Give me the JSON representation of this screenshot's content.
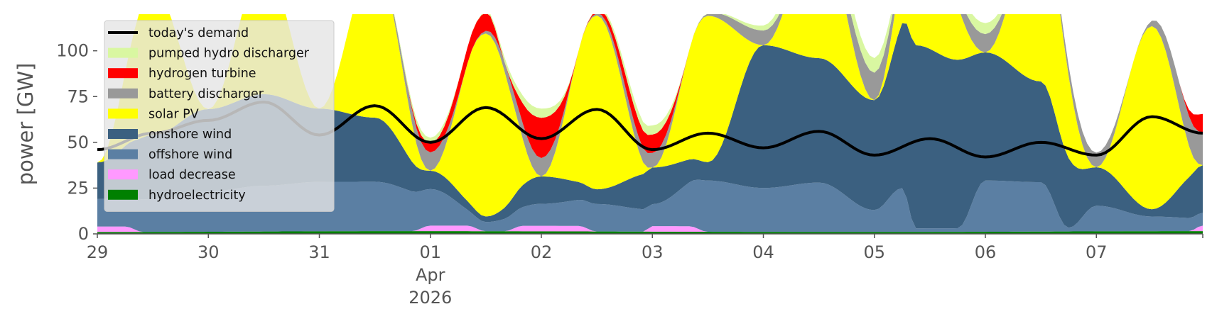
{
  "chart_data": {
    "type": "area",
    "stacked": true,
    "title": "",
    "ylabel": "power [GW]",
    "xlabel": "",
    "ylim": [
      0,
      120
    ],
    "xlim": [
      "2026-03-29 00:00",
      "2026-04-07 23:00"
    ],
    "y_ticks": [
      0,
      25,
      50,
      75,
      100
    ],
    "x_ticks": [
      {
        "x": "2026-03-29 00:00",
        "label": "29"
      },
      {
        "x": "2026-03-30 00:00",
        "label": "30"
      },
      {
        "x": "2026-03-31 00:00",
        "label": "31"
      },
      {
        "x": "2026-04-01 00:00",
        "label": "01",
        "sublabels": [
          "Apr",
          "2026"
        ]
      },
      {
        "x": "2026-04-02 00:00",
        "label": "02"
      },
      {
        "x": "2026-04-03 00:00",
        "label": "03"
      },
      {
        "x": "2026-04-04 00:00",
        "label": "04"
      },
      {
        "x": "2026-04-05 00:00",
        "label": "05"
      },
      {
        "x": "2026-04-06 00:00",
        "label": "06"
      },
      {
        "x": "2026-04-07 00:00",
        "label": "07"
      }
    ],
    "grid": false,
    "legend_position": "top-left",
    "stack_order": [
      "hydroelectricity",
      "load decrease",
      "offshore wind",
      "onshore wind",
      "solar PV",
      "battery discharger",
      "hydrogen turbine",
      "pumped hydro discharger"
    ],
    "legend_order": [
      "today's demand",
      "pumped hydro discharger",
      "hydrogen turbine",
      "battery discharger",
      "solar PV",
      "onshore wind",
      "offshore wind",
      "load decrease",
      "hydroelectricity"
    ],
    "series": [
      {
        "name": "hydroelectricity",
        "color": "#008000",
        "kind": "area",
        "points": [
          [
            "2026-03-29 00:00",
            1
          ],
          [
            "2026-03-31 18:00",
            1.5
          ],
          [
            "2026-04-05 00:00",
            1
          ],
          [
            "2026-04-07 23:00",
            1.5
          ]
        ]
      },
      {
        "name": "load decrease",
        "color": "#ff99ff",
        "kind": "area",
        "points": [
          [
            "2026-03-29 00:00",
            3
          ],
          [
            "2026-03-29 06:00",
            3
          ],
          [
            "2026-03-29 10:00",
            0
          ],
          [
            "2026-03-31 20:00",
            0
          ],
          [
            "2026-04-01 00:00",
            3
          ],
          [
            "2026-04-01 08:00",
            3
          ],
          [
            "2026-04-01 12:00",
            0
          ],
          [
            "2026-04-01 16:00",
            0
          ],
          [
            "2026-04-01 20:00",
            3
          ],
          [
            "2026-04-02 08:00",
            3
          ],
          [
            "2026-04-02 12:00",
            0
          ],
          [
            "2026-04-02 22:00",
            0
          ],
          [
            "2026-04-03 00:00",
            3
          ],
          [
            "2026-04-03 08:00",
            3
          ],
          [
            "2026-04-03 12:00",
            0
          ],
          [
            "2026-04-07 20:00",
            0
          ],
          [
            "2026-04-07 23:00",
            3
          ]
        ]
      },
      {
        "name": "offshore wind",
        "color": "#5b7fa3",
        "kind": "area",
        "points": [
          [
            "2026-03-29 00:00",
            15
          ],
          [
            "2026-03-29 12:00",
            18
          ],
          [
            "2026-03-30 00:00",
            22
          ],
          [
            "2026-03-30 12:00",
            25
          ],
          [
            "2026-03-31 00:00",
            27
          ],
          [
            "2026-03-31 12:00",
            27
          ],
          [
            "2026-04-01 00:00",
            20
          ],
          [
            "2026-04-01 12:00",
            5
          ],
          [
            "2026-04-02 00:00",
            12
          ],
          [
            "2026-04-02 12:00",
            15
          ],
          [
            "2026-04-03 00:00",
            12
          ],
          [
            "2026-04-03 12:00",
            28
          ],
          [
            "2026-04-04 00:00",
            24
          ],
          [
            "2026-04-04 12:00",
            27
          ],
          [
            "2026-04-05 00:00",
            12
          ],
          [
            "2026-04-05 06:00",
            24
          ],
          [
            "2026-04-05 09:00",
            2
          ],
          [
            "2026-04-05 18:00",
            2
          ],
          [
            "2026-04-06 00:00",
            28
          ],
          [
            "2026-04-06 12:00",
            27
          ],
          [
            "2026-04-06 18:00",
            2
          ],
          [
            "2026-04-07 00:00",
            14
          ],
          [
            "2026-04-07 12:00",
            8
          ],
          [
            "2026-04-07 23:00",
            7
          ]
        ]
      },
      {
        "name": "onshore wind",
        "color": "#3b6080",
        "kind": "area",
        "points": [
          [
            "2026-03-29 00:00",
            20
          ],
          [
            "2026-03-29 12:00",
            35
          ],
          [
            "2026-03-30 00:00",
            45
          ],
          [
            "2026-03-30 12:00",
            50
          ],
          [
            "2026-03-31 00:00",
            40
          ],
          [
            "2026-03-31 12:00",
            35
          ],
          [
            "2026-04-01 00:00",
            10
          ],
          [
            "2026-04-01 12:00",
            3
          ],
          [
            "2026-04-02 00:00",
            15
          ],
          [
            "2026-04-02 12:00",
            8
          ],
          [
            "2026-04-03 00:00",
            20
          ],
          [
            "2026-04-03 12:00",
            10
          ],
          [
            "2026-04-04 00:00",
            78
          ],
          [
            "2026-04-04 12:00",
            68
          ],
          [
            "2026-04-05 00:00",
            60
          ],
          [
            "2026-04-05 09:00",
            100
          ],
          [
            "2026-04-05 18:00",
            92
          ],
          [
            "2026-04-06 00:00",
            70
          ],
          [
            "2026-04-06 12:00",
            55
          ],
          [
            "2026-04-07 00:00",
            21
          ],
          [
            "2026-04-07 12:00",
            4
          ],
          [
            "2026-04-07 23:00",
            26
          ]
        ]
      },
      {
        "name": "solar PV",
        "color": "#ffff00",
        "kind": "area",
        "points": [
          [
            "2026-03-29 00:00",
            0
          ],
          [
            "2026-03-29 12:00",
            80
          ],
          [
            "2026-03-30 00:00",
            0
          ],
          [
            "2026-03-30 12:00",
            70
          ],
          [
            "2026-03-31 00:00",
            0
          ],
          [
            "2026-03-31 12:00",
            85
          ],
          [
            "2026-04-01 00:00",
            0
          ],
          [
            "2026-04-01 12:00",
            100
          ],
          [
            "2026-04-02 00:00",
            0
          ],
          [
            "2026-04-02 12:00",
            95
          ],
          [
            "2026-04-03 00:00",
            0
          ],
          [
            "2026-04-03 12:00",
            80
          ],
          [
            "2026-04-04 00:00",
            0
          ],
          [
            "2026-04-04 12:00",
            70
          ],
          [
            "2026-04-05 00:00",
            0
          ],
          [
            "2026-04-05 12:00",
            60
          ],
          [
            "2026-04-06 00:00",
            0
          ],
          [
            "2026-04-06 12:00",
            90
          ],
          [
            "2026-04-07 00:00",
            0
          ],
          [
            "2026-04-07 12:00",
            100
          ],
          [
            "2026-04-07 23:00",
            0
          ]
        ]
      },
      {
        "name": "battery discharger",
        "color": "#999999",
        "kind": "area",
        "points": [
          [
            "2026-03-29 00:00",
            0
          ],
          [
            "2026-03-31 12:00",
            0
          ],
          [
            "2026-04-01 00:00",
            10
          ],
          [
            "2026-04-01 08:00",
            0
          ],
          [
            "2026-04-02 00:00",
            10
          ],
          [
            "2026-04-02 08:00",
            0
          ],
          [
            "2026-04-03 00:00",
            8
          ],
          [
            "2026-04-03 08:00",
            0
          ],
          [
            "2026-04-04 00:00",
            8
          ],
          [
            "2026-04-04 08:00",
            0
          ],
          [
            "2026-04-05 00:00",
            15
          ],
          [
            "2026-04-05 08:00",
            0
          ],
          [
            "2026-04-06 00:00",
            10
          ],
          [
            "2026-04-06 08:00",
            0
          ],
          [
            "2026-04-07 00:00",
            8
          ],
          [
            "2026-04-07 08:00",
            0
          ],
          [
            "2026-04-07 23:00",
            18
          ]
        ]
      },
      {
        "name": "hydrogen turbine",
        "color": "#ff0000",
        "kind": "area",
        "points": [
          [
            "2026-03-29 00:00",
            0
          ],
          [
            "2026-03-31 18:00",
            0
          ],
          [
            "2026-04-01 00:00",
            5
          ],
          [
            "2026-04-01 12:00",
            10
          ],
          [
            "2026-04-01 16:00",
            0
          ],
          [
            "2026-04-02 00:00",
            22
          ],
          [
            "2026-04-02 08:00",
            0
          ],
          [
            "2026-04-03 00:00",
            10
          ],
          [
            "2026-04-03 08:00",
            0
          ],
          [
            "2026-04-07 18:00",
            0
          ],
          [
            "2026-04-07 23:00",
            10
          ]
        ]
      },
      {
        "name": "pumped hydro discharger",
        "color": "#d9f7a1",
        "kind": "area",
        "points": [
          [
            "2026-03-29 00:00",
            0
          ],
          [
            "2026-03-31 12:00",
            0
          ],
          [
            "2026-04-01 00:00",
            3
          ],
          [
            "2026-04-01 08:00",
            0
          ],
          [
            "2026-04-02 00:00",
            5
          ],
          [
            "2026-04-02 08:00",
            0
          ],
          [
            "2026-04-03 00:00",
            5
          ],
          [
            "2026-04-03 08:00",
            0
          ],
          [
            "2026-04-05 00:00",
            8
          ],
          [
            "2026-04-05 08:00",
            0
          ],
          [
            "2026-04-06 00:00",
            6
          ],
          [
            "2026-04-06 08:00",
            0
          ],
          [
            "2026-04-07 23:00",
            0
          ]
        ]
      },
      {
        "name": "today's demand",
        "color": "#000000",
        "kind": "line",
        "points": [
          [
            "2026-03-29 00:00",
            46
          ],
          [
            "2026-03-29 12:00",
            55
          ],
          [
            "2026-03-30 00:00",
            62
          ],
          [
            "2026-03-30 12:00",
            72
          ],
          [
            "2026-03-31 00:00",
            54
          ],
          [
            "2026-03-31 12:00",
            70
          ],
          [
            "2026-04-01 00:00",
            50
          ],
          [
            "2026-04-01 12:00",
            69
          ],
          [
            "2026-04-02 00:00",
            52
          ],
          [
            "2026-04-02 12:00",
            68
          ],
          [
            "2026-04-03 00:00",
            46
          ],
          [
            "2026-04-03 12:00",
            55
          ],
          [
            "2026-04-04 00:00",
            47
          ],
          [
            "2026-04-04 12:00",
            56
          ],
          [
            "2026-04-05 00:00",
            43
          ],
          [
            "2026-04-05 12:00",
            52
          ],
          [
            "2026-04-06 00:00",
            42
          ],
          [
            "2026-04-06 12:00",
            50
          ],
          [
            "2026-04-07 00:00",
            43
          ],
          [
            "2026-04-07 12:00",
            64
          ],
          [
            "2026-04-07 23:00",
            55
          ]
        ]
      }
    ]
  }
}
